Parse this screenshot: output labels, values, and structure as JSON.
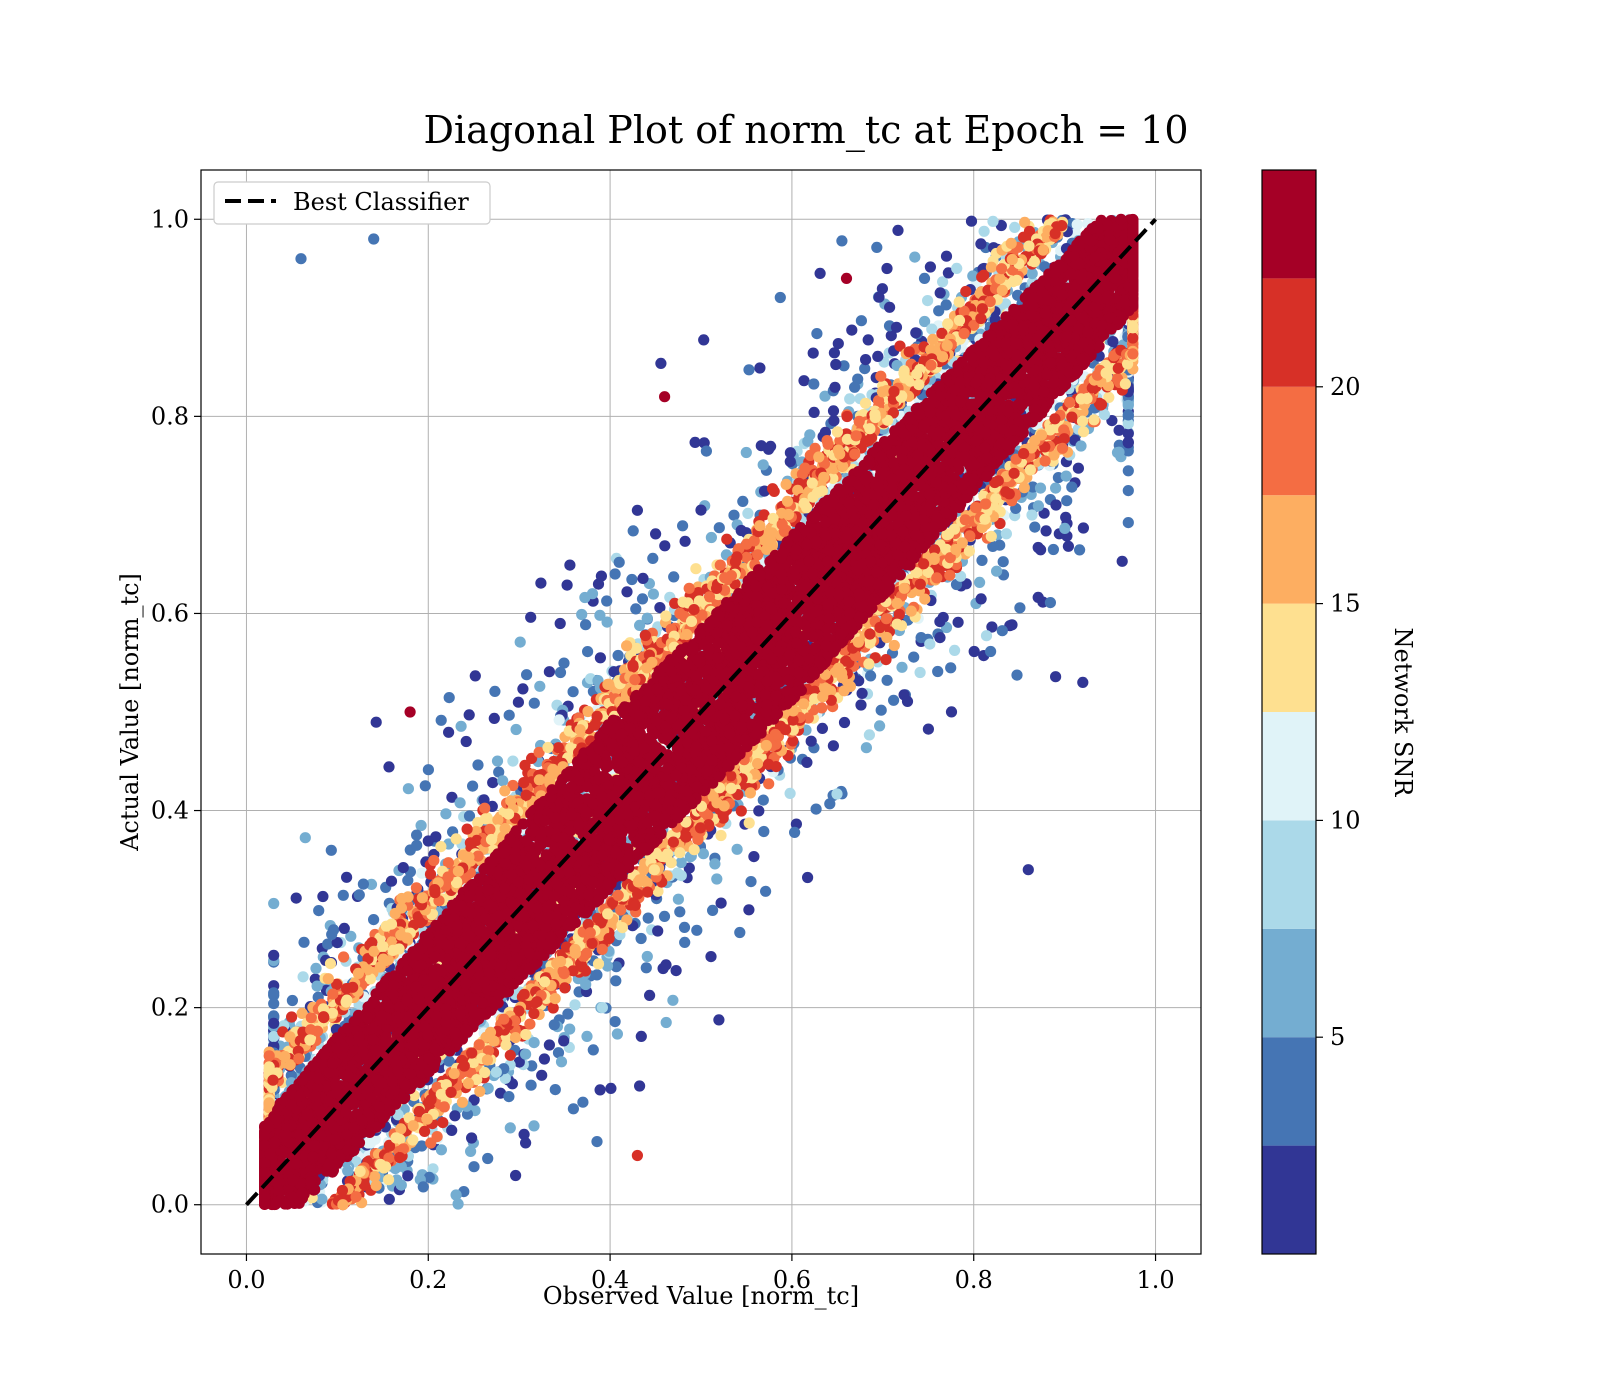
{
  "chart_data": {
    "type": "scatter",
    "title": "Diagonal Plot of norm_tc at Epoch = 10",
    "xlabel": "Observed Value [norm_tc]",
    "ylabel": "Actual Value [norm_tc]",
    "xlim": [
      -0.05,
      1.05
    ],
    "ylim": [
      -0.05,
      1.05
    ],
    "xticks": [
      0.0,
      0.2,
      0.4,
      0.6,
      0.8,
      1.0
    ],
    "yticks": [
      0.0,
      0.2,
      0.4,
      0.6,
      0.8,
      1.0
    ],
    "xtick_labels": [
      "0.0",
      "0.2",
      "0.4",
      "0.6",
      "0.8",
      "1.0"
    ],
    "ytick_labels": [
      "0.0",
      "0.2",
      "0.4",
      "0.6",
      "0.8",
      "1.0"
    ],
    "grid": true,
    "legend": {
      "position": "top-left",
      "entries": [
        "Best Classifier"
      ]
    },
    "reference_line": {
      "name": "Best Classifier",
      "x": [
        0.0,
        1.0
      ],
      "y": [
        0.0,
        1.0
      ],
      "style": "dashed",
      "color": "#000000"
    },
    "colorbar": {
      "label": "Network SNR",
      "ticks": [
        5,
        10,
        15,
        20
      ],
      "tick_labels": [
        "5",
        "10",
        "15",
        "20"
      ],
      "bounds": [
        0,
        2.5,
        5,
        7.5,
        10,
        12.5,
        15,
        17.5,
        20,
        22.5,
        25
      ],
      "display_range": [
        0,
        25
      ],
      "colors": [
        "#313695",
        "#4575b4",
        "#74add1",
        "#abd9e9",
        "#e0f3f8",
        "#fee090",
        "#fdae61",
        "#f46d43",
        "#d73027",
        "#a50026"
      ]
    },
    "points": {
      "description_free_summary": "dense scatter of predictions; high SNR points cluster on the diagonal, low SNR points spread away",
      "high_snr_band": {
        "snr": 24,
        "points": [
          [
            0.05,
            0.02
          ],
          [
            0.1,
            0.08
          ],
          [
            0.2,
            0.2
          ],
          [
            0.3,
            0.28
          ],
          [
            0.4,
            0.4
          ],
          [
            0.5,
            0.51
          ],
          [
            0.6,
            0.6
          ],
          [
            0.7,
            0.7
          ],
          [
            0.8,
            0.8
          ],
          [
            0.9,
            0.92
          ],
          [
            0.95,
            0.98
          ]
        ]
      },
      "outliers": [
        {
          "x": 0.06,
          "y": 0.96,
          "snr": 3
        },
        {
          "x": 0.14,
          "y": 0.98,
          "snr": 4
        },
        {
          "x": 0.86,
          "y": 0.34,
          "snr": 1
        },
        {
          "x": 0.92,
          "y": 0.53,
          "snr": 1
        },
        {
          "x": 0.43,
          "y": 0.05,
          "snr": 21
        },
        {
          "x": 0.46,
          "y": 0.82,
          "snr": 24
        },
        {
          "x": 0.66,
          "y": 0.94,
          "snr": 24
        },
        {
          "x": 0.18,
          "y": 0.5,
          "snr": 24
        }
      ]
    }
  }
}
